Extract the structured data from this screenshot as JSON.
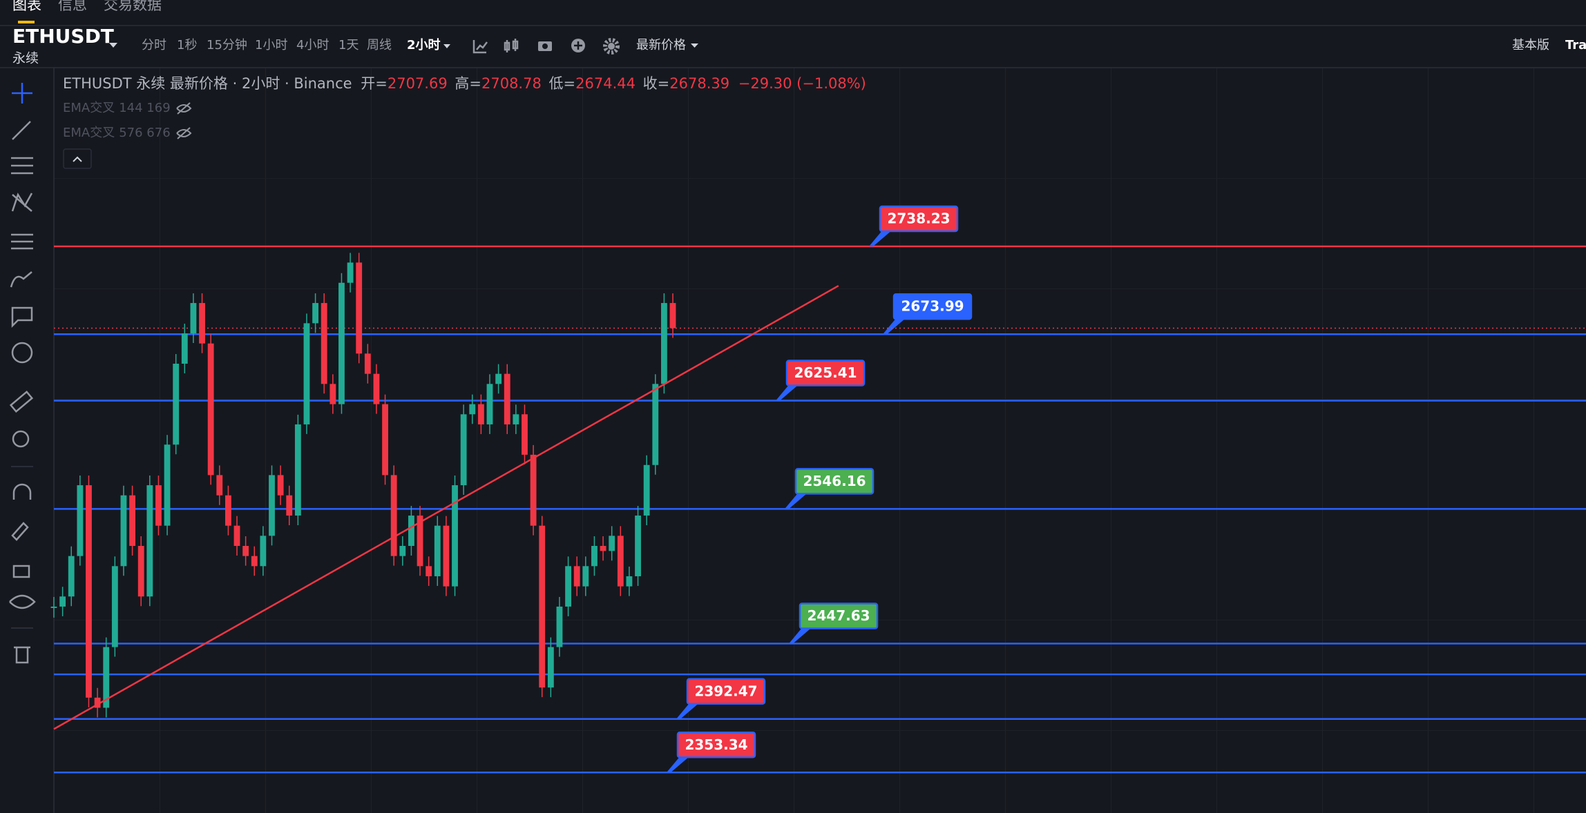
{
  "tabs": [
    "图表",
    "信息",
    "交易数据"
  ],
  "symbol": "ETHUSDT",
  "contract": "永续",
  "intervals": [
    "分时",
    "1秒",
    "15分钟",
    "1小时",
    "4小时",
    "1天",
    "周线"
  ],
  "active_interval": "2小时",
  "price_type": "最新价格",
  "mode": "基本版",
  "mode_cut": "Tra",
  "legend": {
    "title": "ETHUSDT 永续 最新价格 · 2小时 · Binance",
    "open_label": "开=",
    "open": 2707.69,
    "high_label": "高=",
    "high": 2708.78,
    "low_label": "低=",
    "low": 2674.44,
    "close_label": "收=",
    "close": 2678.39,
    "change": "−29.30 (−1.08%)"
  },
  "indicators": [
    {
      "name": "EMA交叉",
      "params": "144 169"
    },
    {
      "name": "EMA交叉",
      "params": "576 676"
    }
  ],
  "chart_data": {
    "type": "candlestick",
    "values": [
      2474.7,
      2482.1,
      2511.7,
      2563.5,
      2408.1,
      2400.7,
      2445.1,
      2504.3,
      2556.1,
      2519.1,
      2482.1,
      2563.5,
      2533.9,
      2593.2,
      2652.4,
      2674.6,
      2696.8,
      2667.2,
      2570.9,
      2556.1,
      2533.9,
      2519.1,
      2511.7,
      2504.3,
      2526.5,
      2570.9,
      2556.1,
      2541.3,
      2608.0,
      2682.0,
      2696.8,
      2637.6,
      2622.8,
      2711.6,
      2726.4,
      2659.8,
      2645.0,
      2622.8,
      2570.9,
      2511.7,
      2519.1,
      2541.3,
      2504.3,
      2496.9,
      2533.9,
      2489.5,
      2563.5,
      2615.4,
      2622.8,
      2608.0,
      2637.6,
      2645.0,
      2608.0,
      2615.4,
      2585.8,
      2533.9,
      2415.5,
      2445.1,
      2474.7,
      2504.3,
      2489.5,
      2504.3,
      2519.1,
      2515.4,
      2526.5,
      2489.5,
      2496.9,
      2541.3,
      2578.3,
      2637.6,
      2696.8,
      2678.39
    ],
    "up_color": "#22ab94",
    "down_color": "#f23645",
    "ylim": [
      2323.7,
      2869
    ],
    "levels": [
      {
        "value": 2738.23,
        "line_color": "#f23645",
        "tag_color": "#f23645"
      },
      {
        "value": 2673.99,
        "line_color": "#2962ff",
        "tag_color": "#2962ff"
      },
      {
        "value": 2625.41,
        "line_color": "#2962ff",
        "tag_color": "#f23645"
      },
      {
        "value": 2546.16,
        "line_color": "#2962ff",
        "tag_color": "#4caf50"
      },
      {
        "value": 2447.63,
        "line_color": "#2962ff",
        "tag_color": "#4caf50"
      },
      {
        "value": 2425.1,
        "line_color": "#2962ff"
      },
      {
        "value": 2392.47,
        "line_color": "#2962ff",
        "tag_color": "#f23645"
      },
      {
        "value": 2353.34,
        "line_color": "#2962ff",
        "tag_color": "#f23645"
      }
    ],
    "trendline": {
      "x": [
        0,
        90
      ],
      "values": [
        2385.1,
        2709.4
      ],
      "color": "#f23645"
    }
  }
}
